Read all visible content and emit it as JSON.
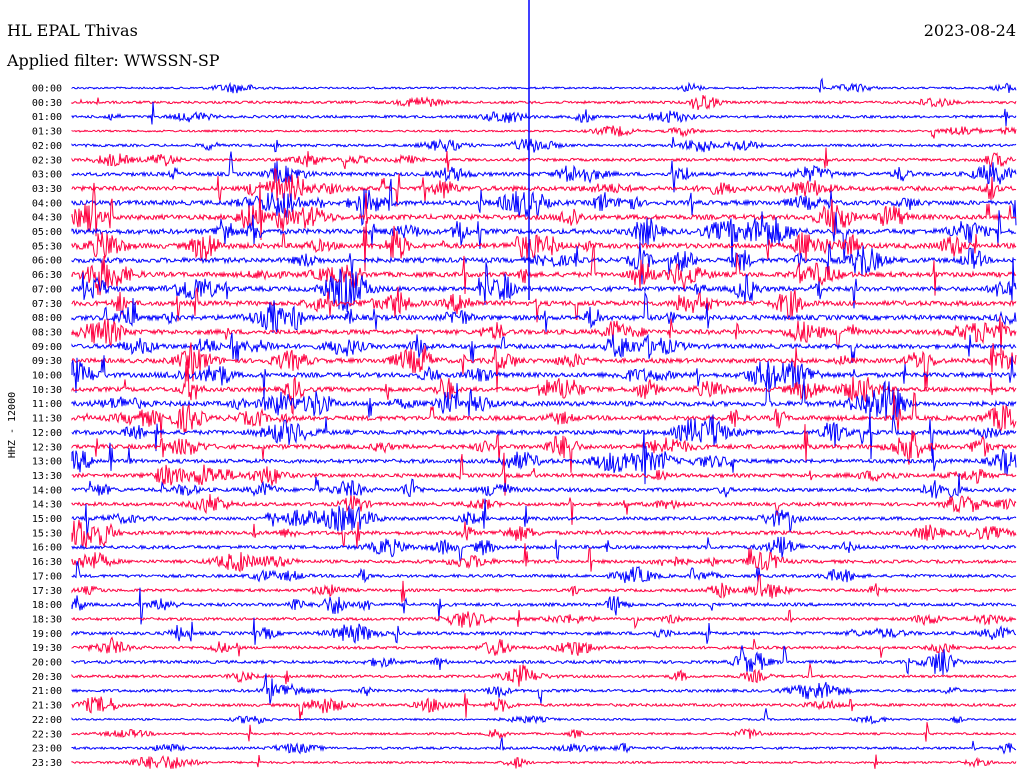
{
  "header": {
    "title": "HL EPAL Thivas",
    "date": "2023-08-24",
    "filter": "Applied filter: WWSSN-SP"
  },
  "chart_data": {
    "type": "line",
    "title": "HL EPAL Thivas",
    "ylabel": "HHZ - 12000",
    "row_labels": [
      "00:00",
      "00:30",
      "01:00",
      "01:30",
      "02:00",
      "02:30",
      "03:00",
      "03:30",
      "04:00",
      "04:30",
      "05:00",
      "05:30",
      "06:00",
      "06:30",
      "07:00",
      "07:30",
      "08:00",
      "08:30",
      "09:00",
      "09:30",
      "10:00",
      "10:30",
      "11:00",
      "11:30",
      "12:00",
      "12:30",
      "13:00",
      "13:30",
      "14:00",
      "14:30",
      "15:00",
      "15:30",
      "16:00",
      "16:30",
      "17:00",
      "17:30",
      "18:00",
      "18:30",
      "19:00",
      "19:30",
      "20:00",
      "20:30",
      "21:00",
      "21:30",
      "22:00",
      "22:30",
      "23:00",
      "23:30"
    ],
    "activity": [
      0.15,
      0.3,
      0.3,
      0.15,
      0.3,
      0.35,
      0.55,
      0.7,
      0.75,
      0.8,
      0.85,
      0.85,
      0.8,
      0.8,
      0.75,
      0.8,
      0.8,
      0.75,
      0.7,
      0.7,
      0.75,
      0.7,
      0.8,
      0.75,
      0.7,
      0.7,
      0.6,
      0.55,
      0.55,
      0.5,
      0.5,
      0.55,
      0.5,
      0.45,
      0.4,
      0.35,
      0.45,
      0.35,
      0.45,
      0.35,
      0.4,
      0.3,
      0.35,
      0.35,
      0.15,
      0.2,
      0.25,
      0.2
    ],
    "colors": [
      "#0000ff",
      "#ff0040"
    ],
    "grid": false
  }
}
